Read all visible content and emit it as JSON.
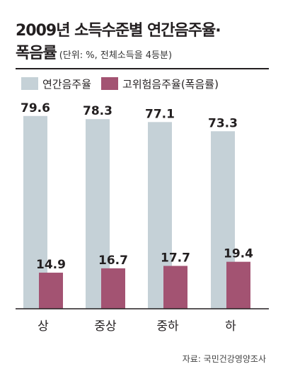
{
  "title_line1": "2009년 소득수준별 연간음주율·",
  "title_line2": "폭음률",
  "unit": "(단위: %, 전체소득을 4등분)",
  "source": "자료: 국민건강영양조사",
  "colors": {
    "series1": "#c5d1d7",
    "series2": "#a35372",
    "text": "#231f20"
  },
  "chart_data": {
    "type": "bar",
    "categories": [
      "상",
      "중상",
      "중하",
      "하"
    ],
    "series": [
      {
        "name": "연간음주율",
        "values": [
          79.6,
          78.3,
          77.1,
          73.3
        ]
      },
      {
        "name": "고위험음주율(폭음률)",
        "values": [
          14.9,
          16.7,
          17.7,
          19.4
        ]
      }
    ],
    "ylim": [
      0,
      100
    ],
    "grid": false,
    "legend": "top-left"
  }
}
